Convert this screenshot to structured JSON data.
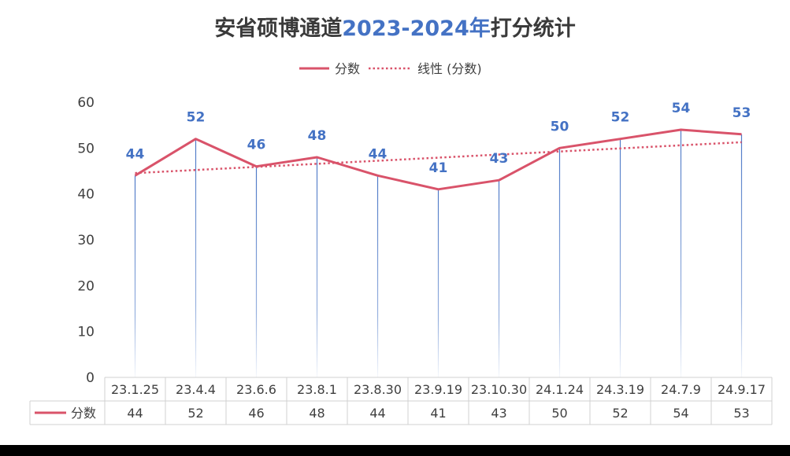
{
  "chart_data": {
    "type": "line",
    "title_parts": [
      "安省硕博通道",
      "2023-2024年",
      "打分统计"
    ],
    "categories": [
      "23.1.25",
      "23.4.4",
      "23.6.6",
      "23.8.1",
      "23.8.30",
      "23.9.19",
      "23.10.30",
      "24.1.24",
      "24.3.19",
      "24.7.9",
      "24.9.17"
    ],
    "series": [
      {
        "name": "分数",
        "values": [
          44,
          52,
          46,
          48,
          44,
          41,
          43,
          50,
          52,
          54,
          53
        ],
        "color": "#d9536a"
      }
    ],
    "trendline": {
      "name": "线性 (分数)",
      "type": "linear",
      "color": "#d9536a"
    },
    "ylim": [
      0,
      60
    ],
    "yticks": [
      0,
      10,
      20,
      30,
      40,
      50,
      60
    ],
    "legend_position": "top",
    "data_table": true,
    "drop_lines": true,
    "label_color": "#4472c4",
    "drop_line_color": "#4472c4"
  }
}
